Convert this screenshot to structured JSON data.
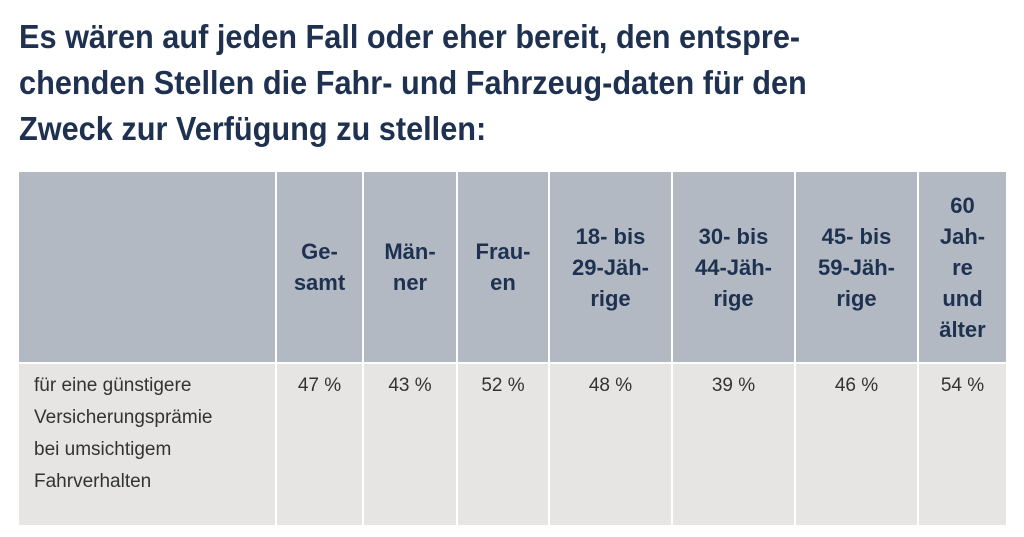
{
  "title": {
    "lines": [
      "Es wären auf jeden Fall oder eher bereit, den entspre-",
      "chenden Stellen die Fahr- und Fahrzeug-daten für den",
      "Zweck zur Verfügung zu stellen:"
    ]
  },
  "table": {
    "header_label": "",
    "columns": [
      {
        "id": "gesamt",
        "lines": [
          "Ge-",
          "samt"
        ]
      },
      {
        "id": "maenner",
        "lines": [
          "Män-",
          "ner"
        ]
      },
      {
        "id": "frauen",
        "lines": [
          "Frau-",
          "en"
        ]
      },
      {
        "id": "age-18-29",
        "lines": [
          "18- bis",
          "29-Jäh-",
          "rige"
        ]
      },
      {
        "id": "age-30-44",
        "lines": [
          "30- bis",
          "44-Jäh-",
          "rige"
        ]
      },
      {
        "id": "age-45-59",
        "lines": [
          "45- bis",
          "59-Jäh-",
          "rige"
        ]
      },
      {
        "id": "age-60-plus",
        "lines": [
          "60",
          "Jah-",
          "re",
          "und",
          "älter"
        ]
      }
    ],
    "rows": [
      {
        "label_lines": [
          "für eine günstigere",
          "Versicherungsprämie",
          "bei umsichtigem",
          "Fahrverhalten"
        ],
        "values": [
          "47 %",
          "43 %",
          "52 %",
          "48 %",
          "39 %",
          "46 %",
          "54 %"
        ]
      }
    ]
  }
}
